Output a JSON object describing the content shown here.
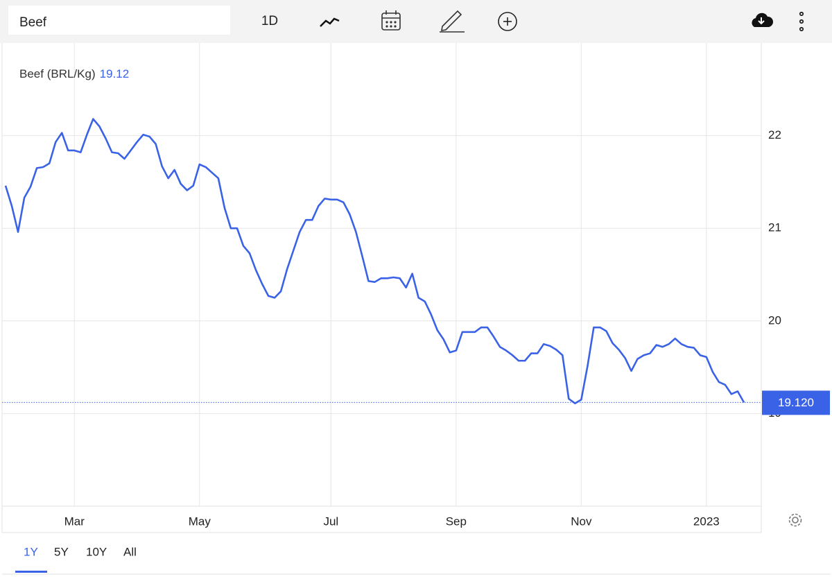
{
  "toolbar": {
    "search": "Beef",
    "interval": "1D"
  },
  "ranges": [
    "1Y",
    "5Y",
    "10Y",
    "All"
  ],
  "active_range": "1Y",
  "chart_data": {
    "type": "line",
    "title": "Beef (BRL/Kg)",
    "categories": [
      null,
      null,
      null,
      null,
      null,
      null,
      null,
      null,
      null,
      null,
      null,
      "Mar",
      null,
      null,
      null,
      null,
      null,
      null,
      null,
      null,
      null,
      null,
      null,
      null,
      null,
      null,
      null,
      null,
      null,
      null,
      null,
      "May",
      null,
      null,
      null,
      null,
      null,
      null,
      null,
      null,
      null,
      null,
      null,
      null,
      null,
      null,
      null,
      null,
      null,
      null,
      null,
      null,
      "Jul",
      null,
      null,
      null,
      null,
      null,
      null,
      null,
      null,
      null,
      null,
      null,
      null,
      null,
      null,
      null,
      null,
      null,
      null,
      null,
      "Sep",
      null,
      null,
      null,
      null,
      null,
      null,
      null,
      null,
      null,
      null,
      null,
      null,
      null,
      null,
      null,
      null,
      null,
      null,
      null,
      "Nov",
      null,
      null,
      null,
      null,
      null,
      null,
      null,
      null,
      null,
      null,
      null,
      null,
      null,
      null,
      null,
      null,
      null,
      null,
      null,
      "2023",
      null,
      null,
      null,
      null,
      null,
      null
    ],
    "series": [
      {
        "name": "Beef",
        "color": "#3a62e6",
        "values": [
          21.46,
          21.24,
          20.96,
          21.33,
          21.45,
          21.65,
          21.66,
          21.7,
          21.93,
          22.03,
          21.84,
          21.84,
          21.82,
          22.01,
          22.18,
          22.1,
          21.97,
          21.82,
          21.81,
          21.75,
          21.84,
          21.93,
          22.01,
          21.99,
          21.91,
          21.67,
          21.54,
          21.63,
          21.48,
          21.41,
          21.46,
          21.69,
          21.66,
          21.6,
          21.54,
          21.22,
          21.0,
          21.0,
          20.81,
          20.73,
          20.55,
          20.4,
          20.27,
          20.25,
          20.32,
          20.56,
          20.76,
          20.96,
          21.09,
          21.09,
          21.24,
          21.32,
          21.31,
          21.31,
          21.28,
          21.15,
          20.96,
          20.7,
          20.43,
          20.42,
          20.46,
          20.46,
          20.47,
          20.46,
          20.36,
          20.51,
          20.25,
          20.21,
          20.07,
          19.9,
          19.8,
          19.66,
          19.68,
          19.88,
          19.88,
          19.88,
          19.93,
          19.93,
          19.83,
          19.72,
          19.68,
          19.63,
          19.57,
          19.57,
          19.65,
          19.65,
          19.75,
          19.73,
          19.69,
          19.63,
          19.16,
          19.11,
          19.15,
          19.51,
          19.93,
          19.93,
          19.89,
          19.76,
          19.69,
          19.6,
          19.46,
          19.59,
          19.63,
          19.65,
          19.74,
          19.72,
          19.75,
          19.81,
          19.75,
          19.72,
          19.71,
          19.63,
          19.61,
          19.45,
          19.34,
          19.31,
          19.21,
          19.24,
          19.12
        ]
      }
    ],
    "price_label": "19.120",
    "ylim": [
      18,
      23
    ],
    "yticks": [
      19,
      20,
      21,
      22
    ],
    "grid": true
  }
}
